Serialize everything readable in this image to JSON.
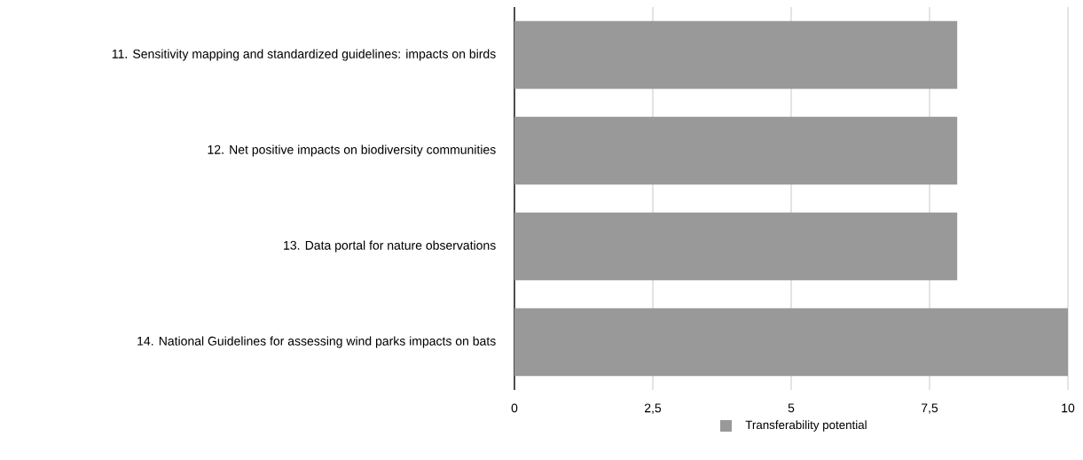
{
  "chart_data": {
    "type": "bar",
    "orientation": "horizontal",
    "categories": [
      "11. Sensitivity mapping and standardized guidelines: impacts on birds",
      "12. Net positive impacts on biodiversity communities",
      "13. Data portal for nature observations",
      "14. National Guidelines for assessing wind parks impacts on bats"
    ],
    "series": [
      {
        "name": "Transferability potential",
        "color": "#999999",
        "values": [
          8,
          8,
          8,
          10
        ]
      }
    ],
    "xlim": [
      0,
      10
    ],
    "xticks": [
      0,
      {
        "value": 2.5,
        "label": "2,5"
      },
      5,
      {
        "value": 7.5,
        "label": "7,5"
      },
      10
    ],
    "grid": "x",
    "legend": "bottom"
  }
}
